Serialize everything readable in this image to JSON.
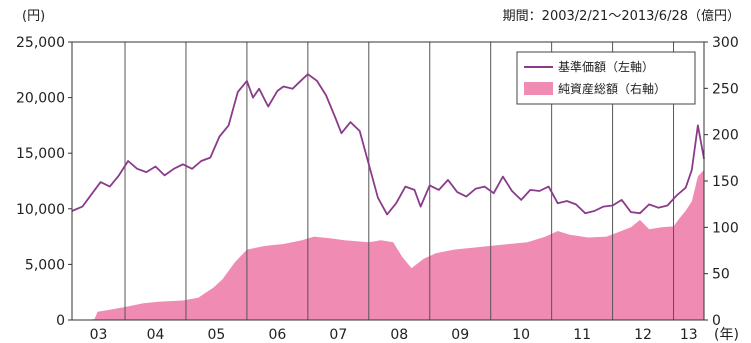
{
  "chart_data": {
    "type": "line+area",
    "period_label": "期間：2003/2/21～2013/6/28（億円）",
    "left_axis": {
      "unit": "(円)",
      "ticks": [
        "0",
        "5,000",
        "10,000",
        "15,000",
        "20,000",
        "25,000"
      ],
      "tick_values": [
        0,
        5000,
        10000,
        15000,
        20000,
        25000
      ],
      "ylim": [
        0,
        25000
      ]
    },
    "right_axis": {
      "unit": "(億円)",
      "ticks": [
        "0",
        "50",
        "100",
        "150",
        "200",
        "250",
        "300"
      ],
      "tick_values": [
        0,
        50,
        100,
        150,
        200,
        250,
        300
      ],
      "ylim": [
        0,
        300
      ]
    },
    "x_axis": {
      "ticks": [
        "03",
        "04",
        "05",
        "06",
        "07",
        "08",
        "09",
        "10",
        "11",
        "12",
        "13"
      ],
      "unit": "(年)",
      "xlim": [
        2003.13,
        2013.5
      ],
      "year_boundaries": [
        2004,
        2005,
        2006,
        2007,
        2008,
        2009,
        2010,
        2011,
        2012,
        2013
      ]
    },
    "legend": {
      "position": "top-right",
      "items": [
        {
          "label": "基準価額（左軸）",
          "kind": "line",
          "color": "#8a3c8c"
        },
        {
          "label": "純資産総額（右軸）",
          "kind": "area",
          "color": "#f08cb4"
        }
      ]
    },
    "series": [
      {
        "name": "基準価額（左軸）",
        "axis": "left",
        "color": "#8a3c8c",
        "x": [
          2003.13,
          2003.3,
          2003.45,
          2003.6,
          2003.75,
          2003.9,
          2004.05,
          2004.2,
          2004.35,
          2004.5,
          2004.65,
          2004.8,
          2004.95,
          2005.1,
          2005.25,
          2005.4,
          2005.55,
          2005.7,
          2005.85,
          2006.0,
          2006.1,
          2006.2,
          2006.35,
          2006.5,
          2006.6,
          2006.75,
          2006.9,
          2007.0,
          2007.15,
          2007.3,
          2007.45,
          2007.55,
          2007.7,
          2007.85,
          2008.0,
          2008.15,
          2008.3,
          2008.45,
          2008.6,
          2008.75,
          2008.85,
          2009.0,
          2009.15,
          2009.3,
          2009.45,
          2009.6,
          2009.75,
          2009.9,
          2010.05,
          2010.2,
          2010.35,
          2010.5,
          2010.65,
          2010.8,
          2010.95,
          2011.1,
          2011.25,
          2011.4,
          2011.55,
          2011.7,
          2011.85,
          2012.0,
          2012.15,
          2012.3,
          2012.45,
          2012.6,
          2012.75,
          2012.9,
          2013.05,
          2013.2,
          2013.3,
          2013.4,
          2013.5
        ],
        "values": [
          9800,
          10200,
          11300,
          12400,
          12000,
          13000,
          14300,
          13600,
          13300,
          13800,
          13000,
          13600,
          14000,
          13600,
          14300,
          14600,
          16500,
          17500,
          20500,
          21500,
          20000,
          20800,
          19200,
          20600,
          21000,
          20800,
          21600,
          22100,
          21500,
          20200,
          18200,
          16800,
          17800,
          17000,
          14000,
          11000,
          9500,
          10500,
          12000,
          11700,
          10200,
          12100,
          11700,
          12600,
          11500,
          11100,
          11800,
          12000,
          11400,
          12900,
          11600,
          10800,
          11700,
          11600,
          12000,
          10500,
          10700,
          10400,
          9600,
          9800,
          10200,
          10300,
          10800,
          9700,
          9600,
          10400,
          10100,
          10300,
          11200,
          11900,
          13500,
          17500,
          14500
        ]
      },
      {
        "name": "純資産総額（右軸）",
        "axis": "right",
        "color": "#f08cb4",
        "x": [
          2003.13,
          2003.35,
          2003.5,
          2003.55,
          2003.75,
          2004.0,
          2004.3,
          2004.6,
          2004.95,
          2005.2,
          2005.45,
          2005.6,
          2005.8,
          2006.0,
          2006.3,
          2006.6,
          2006.9,
          2007.1,
          2007.4,
          2007.6,
          2007.8,
          2008.0,
          2008.2,
          2008.4,
          2008.55,
          2008.7,
          2008.9,
          2009.1,
          2009.4,
          2009.7,
          2010.0,
          2010.3,
          2010.6,
          2010.9,
          2011.1,
          2011.3,
          2011.6,
          2011.9,
          2012.1,
          2012.3,
          2012.45,
          2012.6,
          2012.8,
          2013.0,
          2013.1,
          2013.2,
          2013.3,
          2013.4,
          2013.5
        ],
        "values": [
          0,
          0,
          1,
          9,
          11,
          14,
          18,
          20,
          21,
          24,
          35,
          44,
          62,
          76,
          80,
          82,
          86,
          90,
          88,
          86,
          85,
          84,
          86,
          84,
          68,
          56,
          66,
          72,
          76,
          78,
          80,
          82,
          84,
          90,
          96,
          92,
          89,
          90,
          95,
          100,
          108,
          98,
          100,
          101,
          110,
          118,
          128,
          155,
          162
        ]
      }
    ]
  }
}
